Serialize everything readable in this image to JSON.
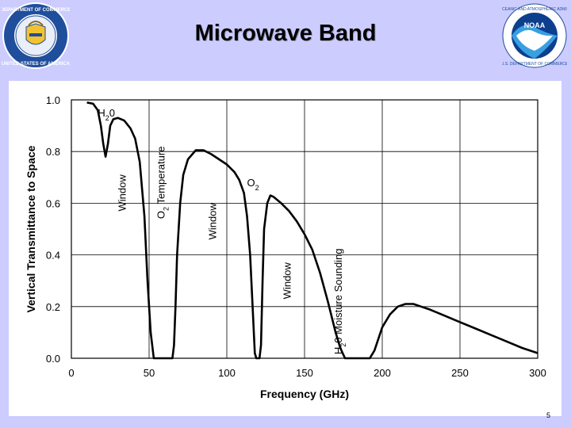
{
  "slide": {
    "title": "Microwave Band",
    "page_number": "5"
  },
  "logos": {
    "left": {
      "icon": "department-of-commerce-seal-icon",
      "text": "DEPARTMENT OF COMMERCE · UNITED STATES OF AMERICA"
    },
    "right": {
      "icon": "noaa-logo-icon",
      "text": "NOAA",
      "ring_text": "NATIONAL OCEANIC AND ATMOSPHERIC ADMINISTRATION · U.S. DEPARTMENT OF COMMERCE"
    }
  },
  "chart_data": {
    "type": "line",
    "xlabel": "Frequency (GHz)",
    "ylabel": "Vertical Transmittance to Space",
    "xlim": [
      0,
      300
    ],
    "ylim": [
      0,
      1.0
    ],
    "xticks": [
      0,
      50,
      100,
      150,
      200,
      250,
      300
    ],
    "yticks": [
      "0.0",
      "0.2",
      "0.4",
      "0.6",
      "0.8",
      "1.0"
    ],
    "grid": true,
    "line_color": "#000000",
    "series": [
      {
        "x": [
          10,
          14,
          17,
          19,
          20.5,
          22,
          23.5,
          25,
          27,
          30,
          34,
          38,
          41,
          44,
          47,
          49,
          51,
          53,
          54,
          55,
          58,
          60,
          63,
          65,
          66,
          67,
          68,
          70,
          72,
          75,
          80,
          85,
          90,
          95,
          100,
          105,
          108,
          111,
          113,
          115,
          117,
          118,
          119,
          121,
          122,
          123,
          124,
          126,
          128,
          130,
          135,
          140,
          145,
          150,
          155,
          160,
          165,
          170,
          173,
          176,
          178,
          180,
          185,
          190,
          192,
          195,
          200,
          205,
          210,
          215,
          220,
          225,
          230,
          240,
          250,
          260,
          270,
          280,
          290,
          300
        ],
        "y": [
          0.99,
          0.985,
          0.96,
          0.9,
          0.83,
          0.78,
          0.83,
          0.9,
          0.925,
          0.93,
          0.92,
          0.89,
          0.85,
          0.76,
          0.55,
          0.3,
          0.1,
          0.0,
          0.0,
          0.0,
          0.0,
          0.0,
          0.0,
          0.0,
          0.05,
          0.2,
          0.4,
          0.6,
          0.71,
          0.77,
          0.805,
          0.805,
          0.79,
          0.77,
          0.75,
          0.72,
          0.69,
          0.64,
          0.55,
          0.4,
          0.15,
          0.02,
          0.0,
          0.0,
          0.05,
          0.3,
          0.5,
          0.6,
          0.63,
          0.625,
          0.6,
          0.57,
          0.53,
          0.48,
          0.42,
          0.33,
          0.22,
          0.1,
          0.04,
          0.0,
          0.0,
          0.0,
          0.0,
          0.0,
          0.0,
          0.03,
          0.12,
          0.17,
          0.2,
          0.21,
          0.21,
          0.2,
          0.19,
          0.165,
          0.14,
          0.115,
          0.09,
          0.065,
          0.04,
          0.02
        ]
      }
    ],
    "annotations": [
      {
        "id": "h2o-peak",
        "parts": [
          {
            "t": "H",
            "sub": false
          },
          {
            "t": "2",
            "sub": true
          },
          {
            "t": "0",
            "sub": false
          }
        ],
        "x": 17,
        "y": 0.935,
        "rotate": false
      },
      {
        "id": "window-1",
        "parts": [
          {
            "t": "Window",
            "sub": false
          }
        ],
        "x": 35,
        "y": 0.64,
        "rotate": true
      },
      {
        "id": "o2-temperature",
        "parts": [
          {
            "t": "O",
            "sub": false
          },
          {
            "t": "2",
            "sub": true
          },
          {
            "t": " Temperature",
            "sub": false
          }
        ],
        "x": 60,
        "y": 0.68,
        "rotate": true
      },
      {
        "id": "window-2",
        "parts": [
          {
            "t": "Window",
            "sub": false
          }
        ],
        "x": 93,
        "y": 0.53,
        "rotate": true
      },
      {
        "id": "o2-line",
        "parts": [
          {
            "t": "O",
            "sub": false
          },
          {
            "t": "2",
            "sub": true
          }
        ],
        "x": 113,
        "y": 0.665,
        "rotate": false
      },
      {
        "id": "window-3",
        "parts": [
          {
            "t": "Window",
            "sub": false
          }
        ],
        "x": 141,
        "y": 0.3,
        "rotate": true
      },
      {
        "id": "h2o-moisture-sounding",
        "parts": [
          {
            "t": "H",
            "sub": false
          },
          {
            "t": "2",
            "sub": true
          },
          {
            "t": "0 Moisture Sounding",
            "sub": false
          }
        ],
        "x": 174,
        "y": 0.22,
        "rotate": true
      }
    ]
  }
}
